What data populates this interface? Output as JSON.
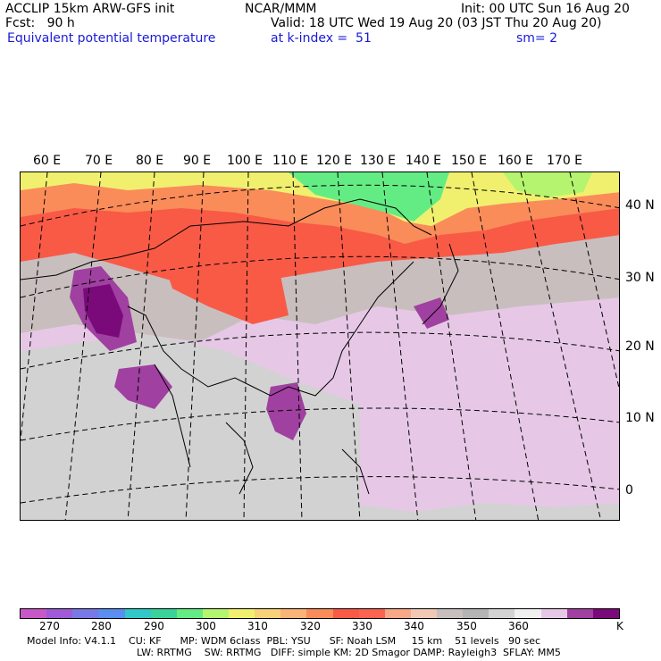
{
  "header": {
    "line1_left": "ACCLIP 15km ARW-GFS init",
    "line1_center": "NCAR/MMM",
    "line1_right": "Init: 00 UTC Sun 16 Aug 20",
    "line2_left": "Fcst:   90 h",
    "line2_right": "Valid: 18 UTC Wed 19 Aug 20 (03 JST Thu 20 Aug 20)",
    "line3_left": "Equivalent potential temperature",
    "line3_mid": "at k-index =  51",
    "line3_right": "sm= 2"
  },
  "axes": {
    "lon_labels": [
      "60 E",
      "70 E",
      "80 E",
      "90 E",
      "100 E",
      "110 E",
      "120 E",
      "130 E",
      "140 E",
      "150 E",
      "160 E",
      "170 E"
    ],
    "lat_labels": [
      "40 N",
      "30 N",
      "20 N",
      "10 N",
      "0"
    ]
  },
  "colorbar": {
    "colors": [
      "#c858c8",
      "#a05ad8",
      "#7878e6",
      "#5a8ef0",
      "#32c8c8",
      "#3ad29a",
      "#64ec84",
      "#b4f46e",
      "#f0f06e",
      "#f8d278",
      "#fab478",
      "#fa8c5a",
      "#f85a46",
      "#fa6450",
      "#f8a886",
      "#f0c8b4",
      "#c8bebe",
      "#b4b4b4",
      "#d2d2d2",
      "#f0f0f0",
      "#e6c8e6",
      "#a040a0",
      "#7a0a7a"
    ],
    "labels": [
      "270",
      "280",
      "290",
      "300",
      "310",
      "320",
      "330",
      "340",
      "350",
      "360"
    ],
    "unit": "K"
  },
  "footer": {
    "line1": "Model Info: V4.1.1    CU: KF      MP: WDM 6class  PBL: YSU      SF: Noah LSM     15 km    51 levels   90 sec",
    "line2": "LW: RRTMG    SW: RRTMG   DIFF: simple KM: 2D Smagor DAMP: Rayleigh3  SFLAY: MM5"
  }
}
